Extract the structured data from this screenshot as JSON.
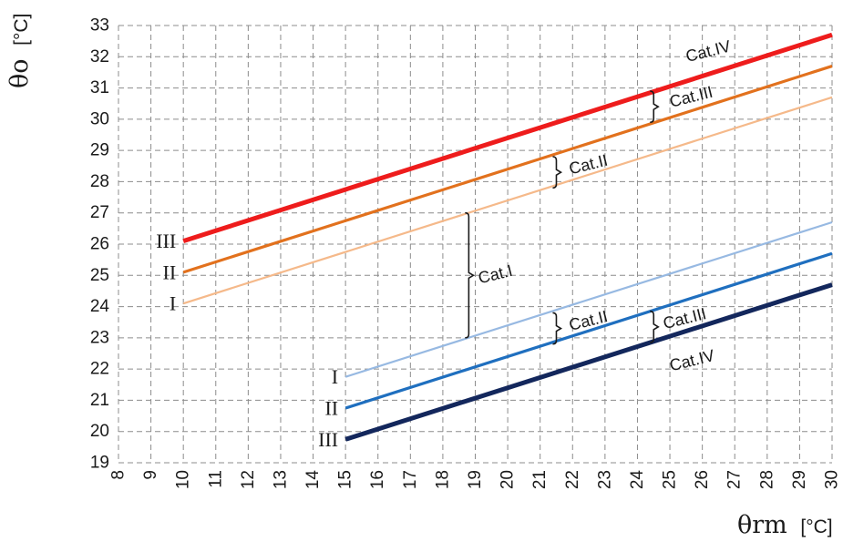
{
  "chart_data": {
    "type": "line",
    "xlabel_symbol": "θrm",
    "xlabel_unit": "[°C]",
    "ylabel_symbol": "θo",
    "ylabel_unit": "[°C]",
    "xlim": [
      8,
      30
    ],
    "ylim": [
      19,
      33
    ],
    "xticks": [
      "8",
      "9",
      "10",
      "11",
      "12",
      "13",
      "14",
      "15",
      "16",
      "17",
      "18",
      "19",
      "20",
      "21",
      "22",
      "23",
      "24",
      "25",
      "26",
      "27",
      "28",
      "29",
      "30"
    ],
    "yticks": [
      "19",
      "20",
      "21",
      "22",
      "23",
      "24",
      "25",
      "26",
      "27",
      "28",
      "29",
      "30",
      "31",
      "32",
      "33"
    ],
    "grid": true,
    "series": [
      {
        "name": "III",
        "color": "#ee1c1c",
        "width": 5,
        "x": [
          10,
          30
        ],
        "y": [
          26.1,
          32.7
        ]
      },
      {
        "name": "II",
        "color": "#e2711d",
        "width": 3.2,
        "x": [
          10,
          30
        ],
        "y": [
          25.1,
          31.7
        ]
      },
      {
        "name": "I",
        "color": "#f5b98a",
        "width": 2.2,
        "x": [
          10,
          30
        ],
        "y": [
          24.1,
          30.7
        ]
      },
      {
        "name": "I",
        "color": "#97b9e2",
        "width": 2.2,
        "x": [
          15,
          30
        ],
        "y": [
          21.75,
          26.7
        ]
      },
      {
        "name": "II",
        "color": "#1f6fbf",
        "width": 3.2,
        "x": [
          15,
          30
        ],
        "y": [
          20.75,
          25.7
        ]
      },
      {
        "name": "III",
        "color": "#13275c",
        "width": 5,
        "x": [
          15,
          30
        ],
        "y": [
          19.75,
          24.7
        ]
      }
    ],
    "category_annotations": [
      {
        "text": "Cat.IV",
        "x": 25.5,
        "y": 32.0,
        "angle": -14
      },
      {
        "text": "Cat.III",
        "x": 25.0,
        "y": 30.55,
        "angle": -14
      },
      {
        "text": "Cat.II",
        "x": 21.9,
        "y": 28.4,
        "angle": -14
      },
      {
        "text": "Cat.I",
        "x": 19.1,
        "y": 24.9,
        "angle": -14
      },
      {
        "text": "Cat.II",
        "x": 21.9,
        "y": 23.4,
        "angle": -14
      },
      {
        "text": "Cat.III",
        "x": 24.8,
        "y": 23.45,
        "angle": -14
      },
      {
        "text": "Cat.IV",
        "x": 25.0,
        "y": 22.1,
        "angle": -14
      }
    ],
    "braces": [
      {
        "x": 24.5,
        "y1": 29.9,
        "y2": 30.9
      },
      {
        "x": 21.5,
        "y1": 27.8,
        "y2": 28.8
      },
      {
        "x": 18.8,
        "y1": 23.0,
        "y2": 27.0
      },
      {
        "x": 21.5,
        "y1": 22.8,
        "y2": 23.8
      },
      {
        "x": 24.5,
        "y1": 22.85,
        "y2": 23.85
      }
    ]
  }
}
